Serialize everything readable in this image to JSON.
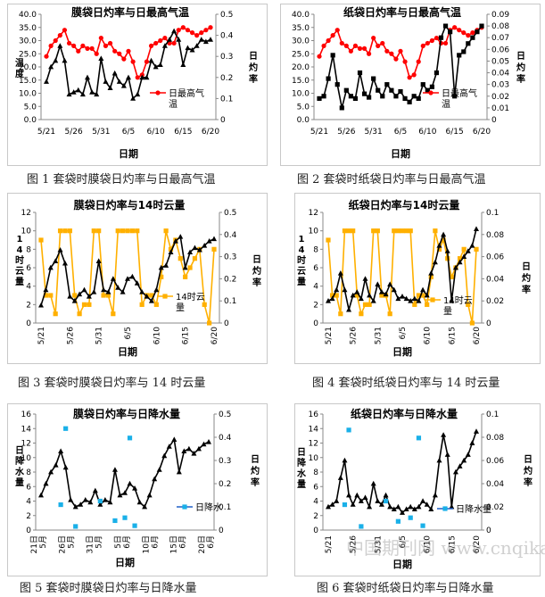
{
  "colors": {
    "red": "#ff0000",
    "black": "#000000",
    "yellow": "#ffb000",
    "cyan": "#1ab0e8",
    "blue": "#2060c8"
  },
  "watermark": "中国期刊网 www.cnqikan.net",
  "chart_data": [
    {
      "type": "line",
      "title": "膜袋日灼率与日最高气温",
      "xlabel": "日期",
      "ylabel": "温度",
      "y2label": "日灼率",
      "ylim": [
        0,
        40
      ],
      "yticks": [
        0,
        5,
        10,
        15,
        20,
        25,
        30,
        35,
        40
      ],
      "ytick_labels": [
        "0.0",
        "5.0",
        "10.0",
        "15.0",
        "20.0",
        "25.0",
        "30.0",
        "35.0",
        "40.0"
      ],
      "y2lim": [
        0,
        0.5
      ],
      "y2ticks": [
        0,
        0.1,
        0.2,
        0.3,
        0.4,
        0.5
      ],
      "y2tick_labels": [
        "0",
        "0.1",
        "0.2",
        "0.3",
        "0.4",
        "0.5"
      ],
      "xtick_labels": [
        "5/21",
        "5/26",
        "5/31",
        "6/5",
        "6/10",
        "6/15",
        "6/20"
      ],
      "legend": {
        "position": "right",
        "entries": [
          "日最高气温"
        ]
      },
      "caption": "图 1 套袋时膜袋日灼率与日最高气温",
      "series": [
        {
          "name": "日最高气温",
          "axis": "left",
          "color": "#ff0000",
          "marker": "circle",
          "values": [
            24,
            28,
            30,
            32,
            34,
            29,
            28,
            26,
            28,
            27,
            27,
            25,
            31,
            28,
            29,
            26,
            25,
            23,
            26,
            22,
            16,
            17,
            22,
            28,
            29,
            30,
            31,
            29,
            29,
            34,
            35,
            34,
            33,
            32,
            33,
            34,
            35
          ]
        },
        {
          "name": "日灼率",
          "axis": "right",
          "color": "#000000",
          "marker": "triangle",
          "values": [
            0.18,
            0.25,
            0.28,
            0.35,
            0.28,
            0.12,
            0.13,
            0.14,
            0.12,
            0.2,
            0.13,
            0.12,
            0.29,
            0.18,
            0.15,
            0.22,
            0.18,
            0.16,
            0.2,
            0.1,
            0.12,
            0.2,
            0.2,
            0.28,
            0.25,
            0.26,
            0.35,
            0.38,
            0.42,
            0.38,
            0.26,
            0.34,
            0.33,
            0.35,
            0.38,
            0.37,
            0.38
          ]
        }
      ]
    },
    {
      "type": "line",
      "title": "纸袋日灼率与日最高气温",
      "xlabel": "日期",
      "ylabel": "",
      "y2label": "日灼率",
      "ylim": [
        0,
        40
      ],
      "yticks": [
        0,
        5,
        10,
        15,
        20,
        25,
        30,
        35,
        40
      ],
      "ytick_labels": [
        "0.0",
        "5.0",
        "10.0",
        "15.0",
        "20.0",
        "25.0",
        "30.0",
        "35.0",
        "40.0"
      ],
      "y2lim": [
        0,
        0.09
      ],
      "y2ticks": [
        0,
        0.01,
        0.02,
        0.03,
        0.04,
        0.05,
        0.06,
        0.07,
        0.08,
        0.09
      ],
      "y2tick_labels": [
        "0",
        "0.01",
        "0.02",
        "0.03",
        "0.04",
        "0.05",
        "0.06",
        "0.07",
        "0.08",
        "0.09"
      ],
      "xtick_labels": [
        "5/21",
        "5/26",
        "5/31",
        "6/5",
        "6/10",
        "6/15",
        "6/20"
      ],
      "legend": {
        "position": "right",
        "entries": [
          "日最高气温"
        ]
      },
      "caption": "图 2 套袋时纸袋日灼率与日最高气温",
      "series": [
        {
          "name": "日最高气温",
          "axis": "left",
          "color": "#ff0000",
          "marker": "circle",
          "values": [
            24,
            28,
            30,
            32,
            34,
            29,
            28,
            26,
            28,
            27,
            27,
            25,
            31,
            28,
            29,
            26,
            25,
            23,
            26,
            22,
            16,
            17,
            22,
            28,
            29,
            30,
            31,
            29,
            29,
            34,
            35,
            34,
            33,
            32,
            33,
            34,
            35
          ]
        },
        {
          "name": "日灼率",
          "axis": "right",
          "color": "#000000",
          "marker": "square",
          "values": [
            0.018,
            0.02,
            0.035,
            0.055,
            0.03,
            0.01,
            0.025,
            0.02,
            0.018,
            0.04,
            0.022,
            0.019,
            0.035,
            0.025,
            0.02,
            0.03,
            0.025,
            0.02,
            0.024,
            0.018,
            0.015,
            0.02,
            0.018,
            0.03,
            0.025,
            0.028,
            0.04,
            0.07,
            0.08,
            0.075,
            0.02,
            0.055,
            0.058,
            0.065,
            0.07,
            0.075,
            0.08
          ]
        }
      ]
    },
    {
      "type": "line",
      "title": "膜袋日灼率与14时云量",
      "xlabel": "日期",
      "ylabel": "14时云量",
      "y2label": "日灼率",
      "ylim": [
        0,
        12
      ],
      "yticks": [
        0,
        2,
        4,
        6,
        8,
        10,
        12
      ],
      "ytick_labels": [
        "0",
        "2",
        "4",
        "6",
        "8",
        "10",
        "12"
      ],
      "y2lim": [
        0,
        0.5
      ],
      "y2ticks": [
        0,
        0.1,
        0.2,
        0.3,
        0.4,
        0.5
      ],
      "y2tick_labels": [
        "0",
        "0.1",
        "0.2",
        "0.3",
        "0.4",
        "0.5"
      ],
      "xtick_labels": [
        "5/21",
        "5/26",
        "5/31",
        "6/5",
        "6/10",
        "6/15",
        "6/20"
      ],
      "legend": {
        "position": "right",
        "entries": [
          "14时云量"
        ]
      },
      "caption": "图 3 套袋时膜袋日灼率与 14 时云量",
      "series": [
        {
          "name": "14时云量",
          "axis": "left",
          "color": "#ffb000",
          "marker": "square",
          "values": [
            9,
            3,
            3,
            1,
            10,
            10,
            10,
            3,
            1,
            2,
            2,
            10,
            10,
            3,
            3,
            1,
            10,
            10,
            10,
            10,
            10,
            2,
            3,
            3,
            2,
            5,
            10,
            8,
            9,
            7,
            5,
            6,
            7,
            8,
            2,
            0,
            8
          ]
        },
        {
          "name": "日灼率",
          "axis": "right",
          "color": "#000000",
          "marker": "triangle",
          "values": [
            0.08,
            0.15,
            0.25,
            0.28,
            0.33,
            0.27,
            0.12,
            0.1,
            0.13,
            0.15,
            0.12,
            0.14,
            0.28,
            0.15,
            0.14,
            0.2,
            0.16,
            0.14,
            0.2,
            0.21,
            0.18,
            0.14,
            0.12,
            0.1,
            0.15,
            0.25,
            0.26,
            0.32,
            0.37,
            0.39,
            0.25,
            0.32,
            0.34,
            0.33,
            0.35,
            0.37,
            0.38
          ]
        }
      ]
    },
    {
      "type": "line",
      "title": "纸袋日灼率与14时云量",
      "xlabel": "日期",
      "ylabel": "14时云量",
      "y2label": "日灼率",
      "ylim": [
        0,
        12
      ],
      "yticks": [
        0,
        2,
        4,
        6,
        8,
        10,
        12
      ],
      "ytick_labels": [
        "0",
        "2",
        "4",
        "6",
        "8",
        "10",
        "12"
      ],
      "y2lim": [
        0,
        0.1
      ],
      "y2ticks": [
        0,
        0.02,
        0.04,
        0.06,
        0.08,
        0.1
      ],
      "y2tick_labels": [
        "0",
        "0.02",
        "0.04",
        "0.06",
        "0.08",
        "0.1"
      ],
      "xtick_labels": [
        "5/21",
        "5/26",
        "5/31",
        "6/5",
        "6/10",
        "6/15",
        "6/20"
      ],
      "legend": {
        "position": "right",
        "entries": [
          "14时云量"
        ]
      },
      "caption": "图 4 套袋时纸袋日灼率与 14 时云量",
      "series": [
        {
          "name": "14时云量",
          "axis": "left",
          "color": "#ffb000",
          "marker": "square",
          "values": [
            9,
            3,
            3,
            1,
            10,
            10,
            10,
            3,
            1,
            2,
            2,
            10,
            10,
            3,
            3,
            1,
            10,
            10,
            10,
            10,
            10,
            2,
            3,
            3,
            2,
            5,
            10,
            8,
            9,
            7,
            5,
            6,
            7,
            8,
            2,
            0,
            8
          ]
        },
        {
          "name": "日灼率",
          "axis": "right",
          "color": "#000000",
          "marker": "triangle",
          "values": [
            0.02,
            0.022,
            0.03,
            0.045,
            0.03,
            0.012,
            0.025,
            0.028,
            0.022,
            0.04,
            0.025,
            0.02,
            0.035,
            0.028,
            0.026,
            0.035,
            0.03,
            0.022,
            0.024,
            0.022,
            0.02,
            0.022,
            0.02,
            0.03,
            0.025,
            0.045,
            0.055,
            0.07,
            0.08,
            0.065,
            0.02,
            0.05,
            0.055,
            0.06,
            0.065,
            0.07,
            0.085
          ]
        }
      ]
    },
    {
      "type": "line",
      "title": "膜袋日灼率与日降水量",
      "xlabel": "日期",
      "ylabel": "日降水量",
      "y2label": "日灼率",
      "ylim": [
        0,
        16
      ],
      "yticks": [
        0,
        2,
        4,
        6,
        8,
        10,
        12,
        14,
        16
      ],
      "ytick_labels": [
        "0",
        "2",
        "4",
        "6",
        "8",
        "10",
        "12",
        "14",
        "16"
      ],
      "y2lim": [
        0,
        0.5
      ],
      "y2ticks": [
        0,
        0.1,
        0.2,
        0.3,
        0.4,
        0.5
      ],
      "y2tick_labels": [
        "0",
        "0.1",
        "0.2",
        "0.3",
        "0.4",
        "0.5"
      ],
      "xtick_labels": [
        "21日",
        "5月",
        "26日",
        "5月",
        "31日",
        "5月",
        "5日",
        "6月",
        "10日",
        "6月",
        "15日",
        "6月",
        "20日",
        "6月"
      ],
      "legend": {
        "position": "right",
        "entries": [
          "日降水"
        ]
      },
      "caption": "图 5 套袋时膜袋日灼率与日降水量",
      "series": [
        {
          "name": "日灼率",
          "axis": "right",
          "color": "#000000",
          "marker": "triangle",
          "values": [
            0.15,
            0.2,
            0.25,
            0.28,
            0.34,
            0.27,
            0.13,
            0.1,
            0.11,
            0.13,
            0.12,
            0.17,
            0.11,
            0.13,
            0.12,
            0.26,
            0.15,
            0.16,
            0.2,
            0.18,
            0.12,
            0.1,
            0.15,
            0.22,
            0.26,
            0.32,
            0.36,
            0.39,
            0.25,
            0.34,
            0.35,
            0.33,
            0.35,
            0.37,
            0.38
          ]
        },
        {
          "name": "日降水",
          "axis": "left",
          "color": "#1ab0e8",
          "marker": "square",
          "scatter_only": true,
          "points": [
            [
              5,
              14.0
            ],
            [
              4,
              3.5
            ],
            [
              7,
              0.5
            ],
            [
              12,
              4.0
            ],
            [
              15,
              1.3
            ],
            [
              17,
              1.7
            ],
            [
              18,
              12.7
            ],
            [
              19,
              0.6
            ]
          ]
        }
      ]
    },
    {
      "type": "line",
      "title": "纸袋日灼率与日降水量",
      "xlabel": "日期",
      "ylabel": "日降水量",
      "y2label": "日灼率",
      "ylim": [
        0,
        16
      ],
      "yticks": [
        0,
        2,
        4,
        6,
        8,
        10,
        12,
        14,
        16
      ],
      "ytick_labels": [
        "0",
        "2",
        "4",
        "6",
        "8",
        "10",
        "12",
        "14",
        "16"
      ],
      "y2lim": [
        0,
        0.1
      ],
      "y2ticks": [
        0,
        0.02,
        0.04,
        0.06,
        0.08,
        0.1
      ],
      "y2tick_labels": [
        "0",
        "0.02",
        "0.04",
        "0.06",
        "0.08",
        "0.1"
      ],
      "xtick_labels": [
        "5/21",
        "5/26",
        "5/31",
        "6/5",
        "6/10",
        "6/15",
        "6/20"
      ],
      "legend": {
        "position": "right",
        "entries": [
          "日降水量"
        ]
      },
      "caption": "图 6 套袋时纸袋日灼率与日降水量",
      "series": [
        {
          "name": "日灼率",
          "axis": "right",
          "color": "#000000",
          "marker": "triangle",
          "values": [
            0.02,
            0.022,
            0.025,
            0.045,
            0.06,
            0.03,
            0.022,
            0.03,
            0.025,
            0.028,
            0.02,
            0.04,
            0.025,
            0.022,
            0.03,
            0.02,
            0.018,
            0.02,
            0.015,
            0.018,
            0.02,
            0.018,
            0.02,
            0.025,
            0.022,
            0.018,
            0.03,
            0.06,
            0.082,
            0.065,
            0.02,
            0.05,
            0.055,
            0.06,
            0.065,
            0.075,
            0.085
          ]
        },
        {
          "name": "日降水量",
          "axis": "left",
          "color": "#1ab0e8",
          "marker": "square",
          "scatter_only": true,
          "points": [
            [
              5,
              13.8
            ],
            [
              4,
              3.5
            ],
            [
              8,
              0.5
            ],
            [
              14,
              4.0
            ],
            [
              17,
              1.2
            ],
            [
              20,
              1.7
            ],
            [
              22,
              12.7
            ],
            [
              23,
              0.6
            ]
          ]
        }
      ]
    }
  ]
}
